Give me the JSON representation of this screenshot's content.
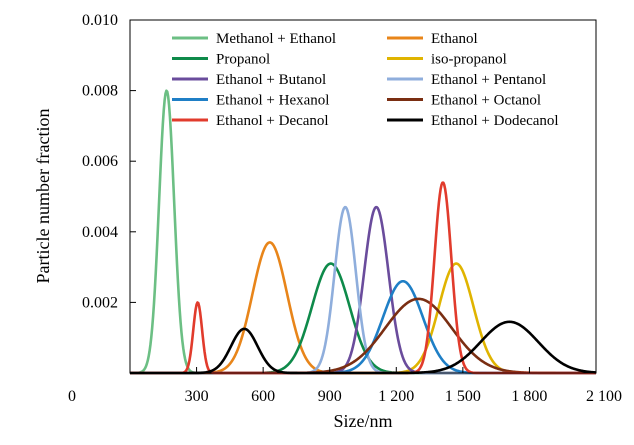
{
  "chart_data": {
    "type": "line",
    "xlabel": "Size/nm",
    "ylabel": "Particle number fraction",
    "xlim": [
      0,
      2100
    ],
    "ylim": [
      0,
      0.01
    ],
    "x_ticks": [
      {
        "value": 0,
        "label": "0"
      },
      {
        "value": 300,
        "label": "300"
      },
      {
        "value": 600,
        "label": "600"
      },
      {
        "value": 900,
        "label": "900"
      },
      {
        "value": 1200,
        "label": "1 200"
      },
      {
        "value": 1500,
        "label": "1 500"
      },
      {
        "value": 1800,
        "label": "1 800"
      },
      {
        "value": 2100,
        "label": "2 100"
      }
    ],
    "y_ticks": [
      {
        "value": 0.002,
        "label": "0.002"
      },
      {
        "value": 0.004,
        "label": "0.004"
      },
      {
        "value": 0.006,
        "label": "0.006"
      },
      {
        "value": 0.008,
        "label": "0.008"
      },
      {
        "value": 0.01,
        "label": "0.010"
      }
    ],
    "legend_position": "top",
    "series": [
      {
        "name": "Methanol + Ethanol",
        "color": "#6cbf84",
        "peak_x": 165,
        "peak_y": 0.008,
        "width": 34
      },
      {
        "name": "Ethanol",
        "color": "#e8851a",
        "peak_x": 630,
        "peak_y": 0.0037,
        "width": 78
      },
      {
        "name": "Propanol",
        "color": "#0e8a4a",
        "peak_x": 905,
        "peak_y": 0.0031,
        "width": 85
      },
      {
        "name": "iso-propanol",
        "color": "#e0b400",
        "peak_x": 1470,
        "peak_y": 0.0031,
        "width": 78
      },
      {
        "name": "Ethanol + Butanol",
        "color": "#6a4c9c",
        "peak_x": 1110,
        "peak_y": 0.0047,
        "width": 55
      },
      {
        "name": "Ethanol + Pentanol",
        "color": "#8faedc",
        "peak_x": 970,
        "peak_y": 0.0047,
        "width": 48
      },
      {
        "name": "Ethanol + Hexanol",
        "color": "#1f7fc6",
        "peak_x": 1230,
        "peak_y": 0.0026,
        "width": 90
      },
      {
        "name": "Ethanol + Octanol",
        "color": "#7a2e12",
        "peak_x": 1300,
        "peak_y": 0.0021,
        "width": 150
      },
      {
        "name": "Ethanol + Decanol",
        "color": "#e13b2c",
        "peak_x": 1410,
        "peak_y": 0.0054,
        "width": 38,
        "secondary_peak": {
          "x": 305,
          "y": 0.002,
          "width": 20
        }
      },
      {
        "name": "Ethanol + Dodecanol",
        "color": "#000000",
        "peak_x": 1710,
        "peak_y": 0.00145,
        "width": 130,
        "secondary_peak": {
          "x": 515,
          "y": 0.00125,
          "width": 60
        }
      }
    ]
  }
}
